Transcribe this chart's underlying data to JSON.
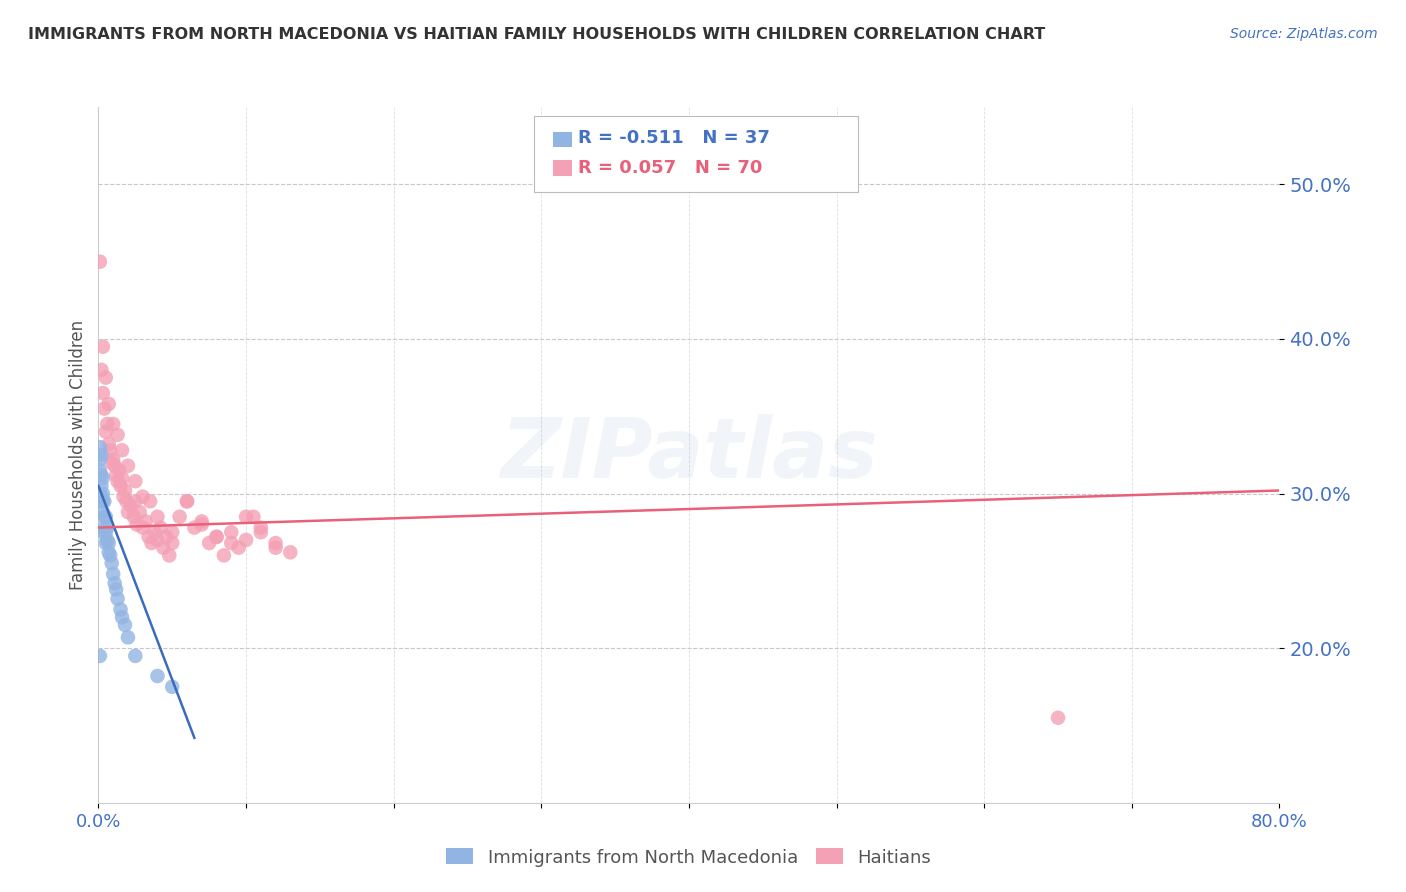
{
  "title": "IMMIGRANTS FROM NORTH MACEDONIA VS HAITIAN FAMILY HOUSEHOLDS WITH CHILDREN CORRELATION CHART",
  "source": "Source: ZipAtlas.com",
  "ylabel": "Family Households with Children",
  "xlim": [
    0,
    0.8
  ],
  "ylim": [
    0.1,
    0.55
  ],
  "yticks": [
    0.2,
    0.3,
    0.4,
    0.5
  ],
  "xticks": [
    0.0,
    0.1,
    0.2,
    0.3,
    0.4,
    0.5,
    0.6,
    0.7,
    0.8
  ],
  "blue_label": "Immigrants from North Macedonia",
  "pink_label": "Haitians",
  "blue_R": "R = -0.511",
  "blue_N": "N = 37",
  "pink_R": "R = 0.057",
  "pink_N": "N = 70",
  "blue_color": "#92b4e3",
  "pink_color": "#f4a0b5",
  "blue_line_color": "#3a6bbf",
  "pink_line_color": "#e8607a",
  "watermark": "ZIPatlas",
  "background_color": "#ffffff",
  "blue_x": [
    0.001,
    0.001,
    0.001,
    0.002,
    0.002,
    0.002,
    0.002,
    0.002,
    0.003,
    0.003,
    0.003,
    0.003,
    0.004,
    0.004,
    0.004,
    0.005,
    0.005,
    0.005,
    0.006,
    0.006,
    0.007,
    0.007,
    0.008,
    0.009,
    0.01,
    0.011,
    0.012,
    0.013,
    0.015,
    0.016,
    0.018,
    0.02,
    0.025,
    0.04,
    0.05,
    0.001,
    0.003
  ],
  "blue_y": [
    0.33,
    0.322,
    0.315,
    0.325,
    0.312,
    0.305,
    0.298,
    0.295,
    0.31,
    0.3,
    0.295,
    0.288,
    0.295,
    0.285,
    0.278,
    0.285,
    0.275,
    0.268,
    0.278,
    0.27,
    0.268,
    0.262,
    0.26,
    0.255,
    0.248,
    0.242,
    0.238,
    0.232,
    0.225,
    0.22,
    0.215,
    0.207,
    0.195,
    0.182,
    0.175,
    0.195,
    0.275
  ],
  "pink_x": [
    0.001,
    0.002,
    0.003,
    0.004,
    0.005,
    0.006,
    0.007,
    0.008,
    0.009,
    0.01,
    0.011,
    0.012,
    0.013,
    0.014,
    0.015,
    0.016,
    0.017,
    0.018,
    0.019,
    0.02,
    0.022,
    0.024,
    0.025,
    0.026,
    0.028,
    0.03,
    0.032,
    0.034,
    0.036,
    0.038,
    0.04,
    0.042,
    0.044,
    0.046,
    0.048,
    0.05,
    0.055,
    0.06,
    0.065,
    0.07,
    0.075,
    0.08,
    0.085,
    0.09,
    0.095,
    0.1,
    0.105,
    0.11,
    0.12,
    0.13,
    0.003,
    0.005,
    0.007,
    0.01,
    0.013,
    0.016,
    0.02,
    0.025,
    0.03,
    0.035,
    0.04,
    0.05,
    0.06,
    0.07,
    0.08,
    0.09,
    0.1,
    0.11,
    0.12,
    0.65
  ],
  "pink_y": [
    0.45,
    0.38,
    0.365,
    0.355,
    0.34,
    0.345,
    0.332,
    0.328,
    0.32,
    0.322,
    0.318,
    0.312,
    0.308,
    0.315,
    0.305,
    0.31,
    0.298,
    0.302,
    0.295,
    0.288,
    0.292,
    0.285,
    0.295,
    0.28,
    0.288,
    0.278,
    0.282,
    0.272,
    0.268,
    0.275,
    0.27,
    0.278,
    0.265,
    0.272,
    0.26,
    0.268,
    0.285,
    0.295,
    0.278,
    0.282,
    0.268,
    0.272,
    0.26,
    0.275,
    0.265,
    0.27,
    0.285,
    0.278,
    0.268,
    0.262,
    0.395,
    0.375,
    0.358,
    0.345,
    0.338,
    0.328,
    0.318,
    0.308,
    0.298,
    0.295,
    0.285,
    0.275,
    0.295,
    0.28,
    0.272,
    0.268,
    0.285,
    0.275,
    0.265,
    0.155
  ],
  "pink_line_start_x": 0.0,
  "pink_line_start_y": 0.278,
  "pink_line_end_x": 0.8,
  "pink_line_end_y": 0.302,
  "blue_line_start_x": 0.0,
  "blue_line_start_y": 0.305,
  "blue_line_end_x": 0.065,
  "blue_line_end_y": 0.142
}
